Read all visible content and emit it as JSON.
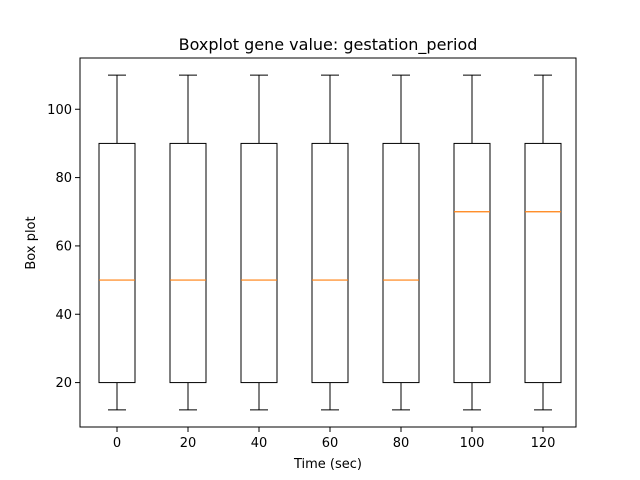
{
  "chart_data": {
    "type": "boxplot",
    "title": "Boxplot gene value: gestation_period",
    "xlabel": "Time (sec)",
    "ylabel": "Box plot",
    "categories": [
      "0",
      "20",
      "40",
      "60",
      "80",
      "100",
      "120"
    ],
    "yticks": [
      "20",
      "40",
      "60",
      "80",
      "100"
    ],
    "ylim": [
      7,
      115
    ],
    "grid": false,
    "colors": {
      "box": "#000000",
      "median": "#ff7f0e"
    },
    "boxes": [
      {
        "category": "0",
        "whisker_low": 12,
        "q1": 20,
        "median": 50,
        "q3": 90,
        "whisker_high": 110
      },
      {
        "category": "20",
        "whisker_low": 12,
        "q1": 20,
        "median": 50,
        "q3": 90,
        "whisker_high": 110
      },
      {
        "category": "40",
        "whisker_low": 12,
        "q1": 20,
        "median": 50,
        "q3": 90,
        "whisker_high": 110
      },
      {
        "category": "60",
        "whisker_low": 12,
        "q1": 20,
        "median": 50,
        "q3": 90,
        "whisker_high": 110
      },
      {
        "category": "80",
        "whisker_low": 12,
        "q1": 20,
        "median": 50,
        "q3": 90,
        "whisker_high": 110
      },
      {
        "category": "100",
        "whisker_low": 12,
        "q1": 20,
        "median": 70,
        "q3": 90,
        "whisker_high": 110
      },
      {
        "category": "120",
        "whisker_low": 12,
        "q1": 20,
        "median": 70,
        "q3": 90,
        "whisker_high": 110
      }
    ]
  }
}
